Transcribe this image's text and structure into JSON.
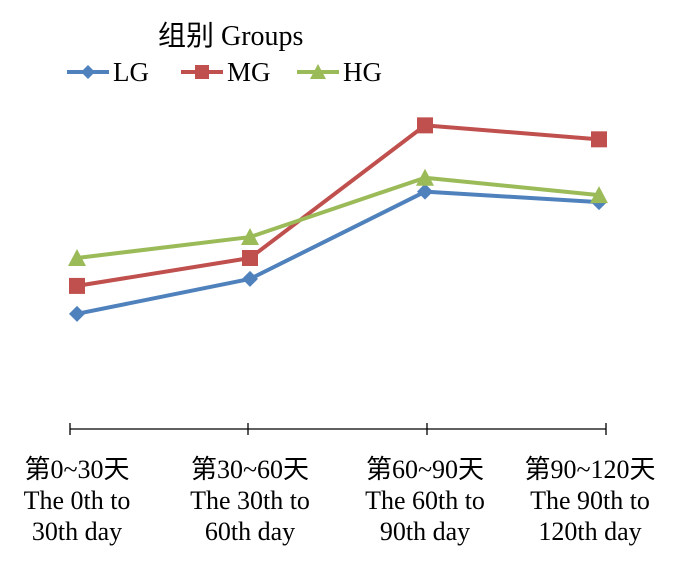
{
  "chart_data": {
    "type": "line",
    "legend_title": "组别 Groups",
    "legend_placement": "top-left",
    "categories": [
      [
        "第0~30天",
        "The 0th to",
        "30th day"
      ],
      [
        "第30~60天",
        "The 30th to",
        "60th day"
      ],
      [
        "第60~90天",
        "The 60th to",
        "90th day"
      ],
      [
        "第90~120天",
        "The 90th to",
        "120th day"
      ]
    ],
    "series": [
      {
        "name": "LG",
        "color": "#4f81bd",
        "marker": "diamond",
        "values": [
          33,
          43,
          68,
          65
        ]
      },
      {
        "name": "MG",
        "color": "#c0504d",
        "marker": "square",
        "values": [
          41,
          49,
          87,
          83
        ]
      },
      {
        "name": "HG",
        "color": "#9bbb59",
        "marker": "triangle",
        "values": [
          49,
          55,
          72,
          67
        ]
      }
    ],
    "y_axis_visible": false,
    "ylim": [
      0,
      100
    ],
    "grid": false
  }
}
